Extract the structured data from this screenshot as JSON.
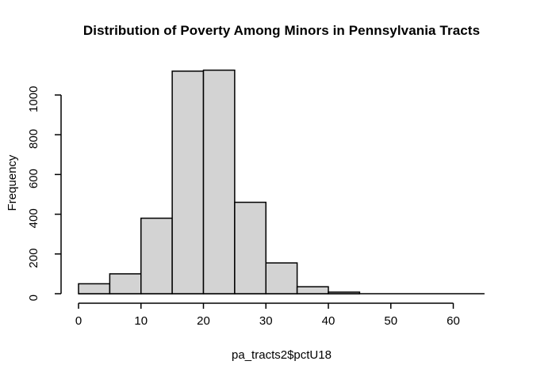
{
  "chart_data": {
    "type": "bar",
    "subtype": "histogram",
    "title": "Distribution of Poverty Among Minors in Pennsylvania Tracts",
    "xlabel": "pa_tracts2$pctU18",
    "ylabel": "Frequency",
    "bin_width": 5,
    "bin_edges": [
      0,
      5,
      10,
      15,
      20,
      25,
      30,
      35,
      40,
      45,
      50,
      55,
      60,
      65
    ],
    "counts": [
      50,
      100,
      380,
      1120,
      1125,
      460,
      155,
      35,
      8,
      0,
      0,
      0,
      0
    ],
    "x_ticks": [
      0,
      10,
      20,
      30,
      40,
      50,
      60
    ],
    "y_ticks": [
      0,
      200,
      400,
      600,
      800,
      1000
    ],
    "xlim": [
      0,
      65
    ],
    "ylim": [
      0,
      1000
    ],
    "legend": "none",
    "grid": "off",
    "colors": {
      "bar_fill": "#d3d3d3",
      "bar_border": "#000000",
      "axis": "#000000",
      "text": "#000000",
      "background": "#ffffff"
    }
  }
}
